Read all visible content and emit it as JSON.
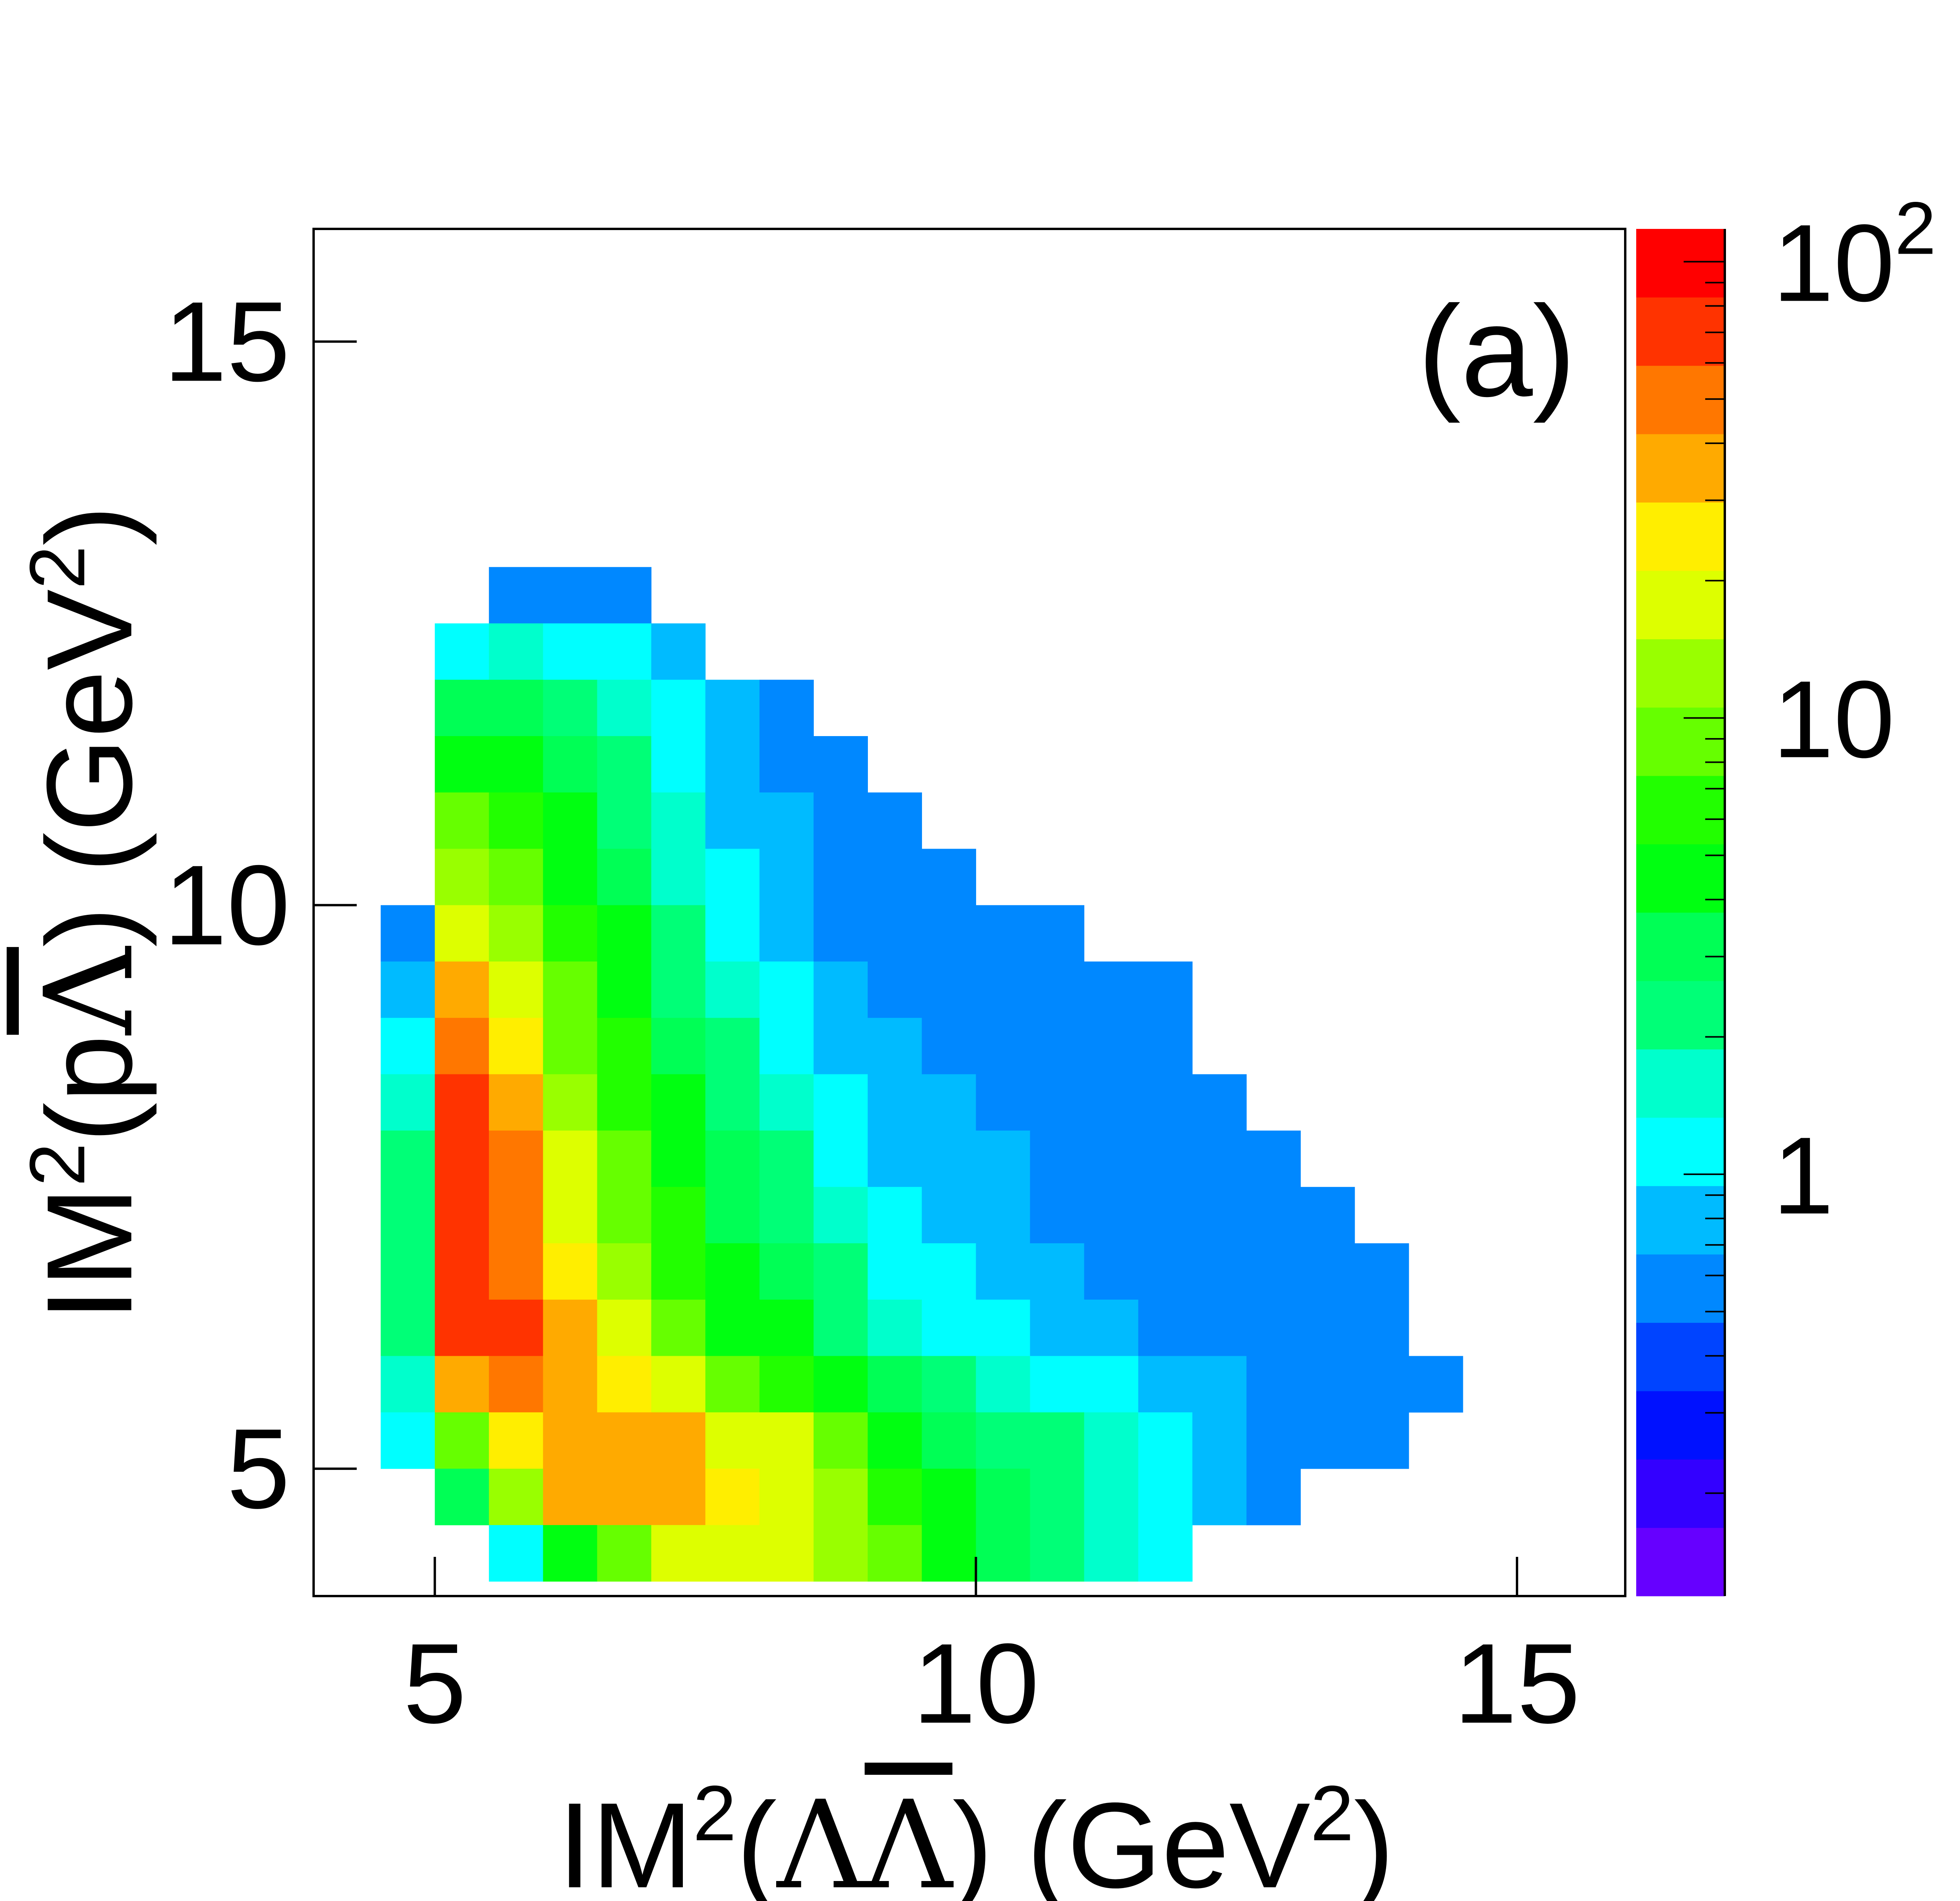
{
  "chart_data": {
    "type": "heatmap",
    "panel_label": "(a)",
    "xlabel": {
      "prefix": "IM",
      "sup1": "2",
      "open": "(",
      "sym1": "Λ",
      "sym2": "Λ",
      "close": ")",
      "unit": " (GeV",
      "sup2": "2",
      "end": ")"
    },
    "ylabel": {
      "prefix": "IM",
      "sup1": "2",
      "open": "(",
      "sym1": "p",
      "sym2": "Λ",
      "close": ")",
      "unit": " (GeV",
      "sup2": "2",
      "end": ")"
    },
    "xlim": [
      3.88,
      16.0
    ],
    "ylim": [
      3.87,
      16.0
    ],
    "xticks": [
      {
        "value": 5,
        "label": "5"
      },
      {
        "value": 10,
        "label": "10"
      },
      {
        "value": 15,
        "label": "15"
      }
    ],
    "yticks": [
      {
        "value": 5,
        "label": "5"
      },
      {
        "value": 10,
        "label": "10"
      },
      {
        "value": 15,
        "label": "15"
      }
    ],
    "z_scale": "log",
    "zlim": [
      0.119,
      118
    ],
    "zticks": [
      {
        "value": 1,
        "label": "1",
        "sup": ""
      },
      {
        "value": 10,
        "label": "10",
        "sup": ""
      },
      {
        "value": 100,
        "label": "10",
        "sup": "2"
      }
    ],
    "palette": [
      "#6600ff",
      "#3300ff",
      "#0011ff",
      "#0044ff",
      "#0088ff",
      "#00bbff",
      "#00ffff",
      "#00ffcc",
      "#00ff77",
      "#00ff55",
      "#00ff11",
      "#22ff00",
      "#66ff00",
      "#99ff00",
      "#ddff00",
      "#ffee00",
      "#ffaa00",
      "#ff7700",
      "#ff3300",
      "#ff0000"
    ],
    "bin_width_x": 0.5,
    "bin_width_y": 0.5,
    "rows": [
      {
        "y": 12.5,
        "x_start": 5.5,
        "counts": [
          0.6,
          0.6,
          0.5
        ]
      },
      {
        "y": 12.0,
        "x_start": 5.0,
        "counts": [
          1,
          1.5,
          1,
          1,
          0.7
        ]
      },
      {
        "y": 11.5,
        "x_start": 5.0,
        "counts": [
          3,
          3,
          2,
          1.5,
          1,
          0.7,
          0.6
        ]
      },
      {
        "y": 11.0,
        "x_start": 5.0,
        "counts": [
          5,
          5,
          3,
          2,
          1,
          0.8,
          0.6,
          0.5
        ]
      },
      {
        "y": 10.5,
        "x_start": 5.0,
        "counts": [
          8,
          6,
          4,
          2.5,
          1.5,
          0.8,
          0.7,
          0.6,
          0.5
        ]
      },
      {
        "y": 10.0,
        "x_start": 5.0,
        "counts": [
          12,
          9,
          5,
          3,
          1.5,
          1,
          0.7,
          0.6,
          0.5,
          0.5
        ]
      },
      {
        "y": 9.5,
        "x_start": 4.5,
        "counts": [
          0.5,
          20,
          12,
          6,
          4,
          2,
          1.2,
          0.8,
          0.6,
          0.6,
          0.5,
          0.5,
          0.5
        ]
      },
      {
        "y": 9.0,
        "x_start": 4.5,
        "counts": [
          0.8,
          30,
          18,
          8,
          5,
          2.5,
          1.5,
          1,
          0.7,
          0.6,
          0.6,
          0.5,
          0.5,
          0.5,
          0.5
        ]
      },
      {
        "y": 8.5,
        "x_start": 4.5,
        "counts": [
          1,
          45,
          25,
          10,
          6,
          3,
          2,
          1.2,
          0.8,
          0.7,
          0.6,
          0.6,
          0.5,
          0.5,
          0.5
        ]
      },
      {
        "y": 8.0,
        "x_start": 4.5,
        "counts": [
          1.5,
          60,
          35,
          14,
          7,
          4,
          2.5,
          1.5,
          1,
          0.8,
          0.7,
          0.6,
          0.5,
          0.5,
          0.5,
          0.5
        ]
      },
      {
        "y": 7.5,
        "x_start": 4.5,
        "counts": [
          2,
          75,
          45,
          18,
          8,
          5,
          3,
          2,
          1.2,
          0.9,
          0.8,
          0.7,
          0.6,
          0.5,
          0.5,
          0.5,
          0.5
        ]
      },
      {
        "y": 7.0,
        "x_start": 4.5,
        "counts": [
          2,
          80,
          50,
          20,
          10,
          6,
          3.5,
          2.5,
          1.5,
          1,
          0.9,
          0.7,
          0.6,
          0.6,
          0.5,
          0.5,
          0.5,
          0.5
        ]
      },
      {
        "y": 6.5,
        "x_start": 4.5,
        "counts": [
          2,
          70,
          55,
          25,
          12,
          7,
          4,
          3,
          2,
          1.2,
          1,
          0.8,
          0.7,
          0.6,
          0.6,
          0.5,
          0.5,
          0.5,
          0.5
        ]
      },
      {
        "y": 6.0,
        "x_start": 4.5,
        "counts": [
          2,
          60,
          60,
          30,
          15,
          9,
          5,
          4,
          2.5,
          1.5,
          1.2,
          1,
          0.8,
          0.7,
          0.6,
          0.6,
          0.5,
          0.5,
          0.5
        ]
      },
      {
        "y": 5.5,
        "x_start": 4.5,
        "counts": [
          1.5,
          30,
          50,
          40,
          25,
          15,
          10,
          6,
          4,
          3,
          2,
          1.5,
          1.2,
          1,
          0.8,
          0.7,
          0.6,
          0.5,
          0.5,
          0.5
        ]
      },
      {
        "y": 5.0,
        "x_start": 4.5,
        "counts": [
          1,
          10,
          25,
          40,
          40,
          30,
          20,
          15,
          8,
          5,
          3.5,
          2.5,
          2,
          1.5,
          1,
          0.8,
          0.6,
          0.5,
          0.5
        ]
      },
      {
        "y": 4.5,
        "x_start": 5.0,
        "counts": [
          3,
          12,
          30,
          40,
          35,
          25,
          20,
          12,
          6,
          4,
          3,
          2.5,
          1.8,
          1.2,
          0.8,
          0.6
        ]
      },
      {
        "y": 4.0,
        "x_start": 5.5,
        "counts": [
          1,
          4,
          10,
          15,
          15,
          15,
          12,
          8,
          5,
          3,
          2,
          1.5,
          1
        ]
      }
    ]
  }
}
